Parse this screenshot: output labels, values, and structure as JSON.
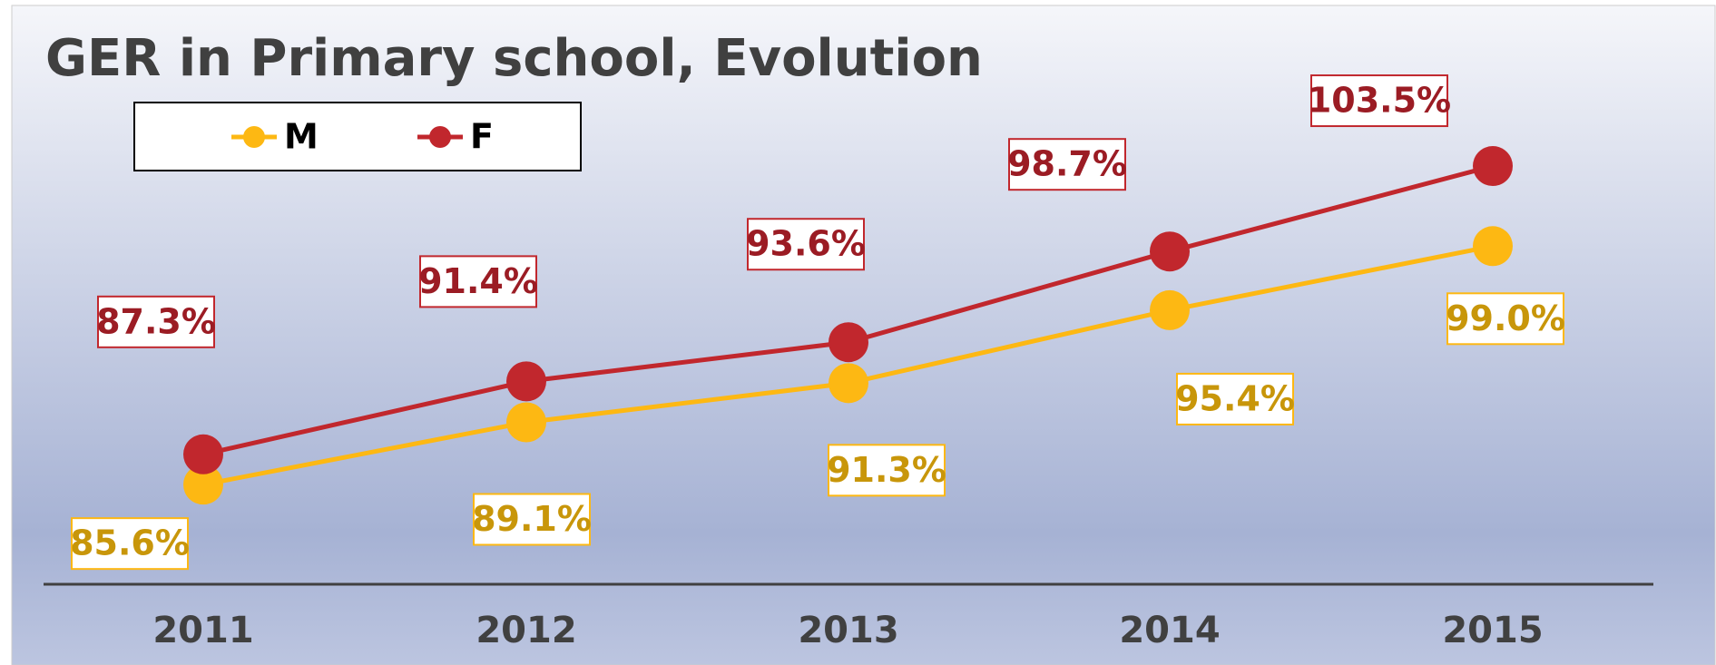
{
  "chart_data": {
    "type": "line",
    "title": "GER in Primary school, Evolution",
    "categories": [
      "2011",
      "2012",
      "2013",
      "2014",
      "2015"
    ],
    "series": [
      {
        "name": "M",
        "color": "#fdb813",
        "label_color": "#c8960a",
        "values": [
          85.6,
          89.1,
          91.3,
          95.4,
          99.0
        ],
        "value_labels": [
          "85.6%",
          "89.1%",
          "91.3%",
          "95.4%",
          "99.0%"
        ]
      },
      {
        "name": "F",
        "color": "#c1272d",
        "label_color": "#9b1c24",
        "values": [
          87.3,
          91.4,
          93.6,
          98.7,
          103.5
        ],
        "value_labels": [
          "87.3%",
          "91.4%",
          "93.6%",
          "98.7%",
          "103.5%"
        ]
      }
    ],
    "ylim": [
      80,
      106
    ],
    "legend": "top-left"
  }
}
